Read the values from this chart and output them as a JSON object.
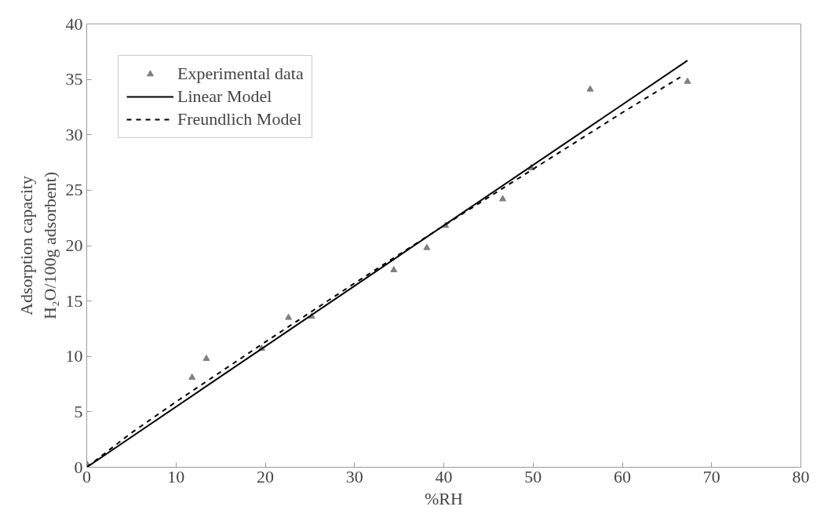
{
  "chart_data": {
    "type": "scatter",
    "xlabel": "%RH",
    "ylabel": "Adsorption capacity\nH₂O/100g adsorbent)",
    "xlim": [
      0,
      80
    ],
    "ylim": [
      0,
      40
    ],
    "xticks": [
      0,
      10,
      20,
      30,
      40,
      50,
      60,
      70,
      80
    ],
    "yticks": [
      0,
      5,
      10,
      15,
      20,
      25,
      30,
      35,
      40
    ],
    "grid": false,
    "legend": "top left",
    "series": [
      {
        "name": "Experimental data",
        "marker": "triangle",
        "color": "#808080",
        "x": [
          0,
          11.8,
          13.4,
          19.6,
          22.6,
          25.2,
          34.4,
          38.1,
          40.2,
          46.6,
          49.8,
          56.4,
          67.3
        ],
        "values": [
          0.3,
          8.1,
          9.8,
          10.7,
          13.5,
          13.6,
          17.8,
          19.8,
          21.8,
          24.2,
          27.0,
          34.1,
          34.8
        ]
      },
      {
        "name": "Linear Model",
        "type": "line",
        "line_style": "solid",
        "color": "#000000",
        "x": [
          0,
          67.3
        ],
        "values": [
          0,
          36.7
        ]
      },
      {
        "name": "Freundlich Model",
        "type": "line",
        "line_style": "dashed",
        "color": "#000000",
        "x": [
          0,
          5,
          10,
          20,
          30,
          40,
          50,
          60,
          66.5
        ],
        "values": [
          0,
          3.1,
          5.9,
          11.3,
          16.6,
          21.8,
          26.9,
          32.0,
          35.2
        ]
      }
    ]
  }
}
